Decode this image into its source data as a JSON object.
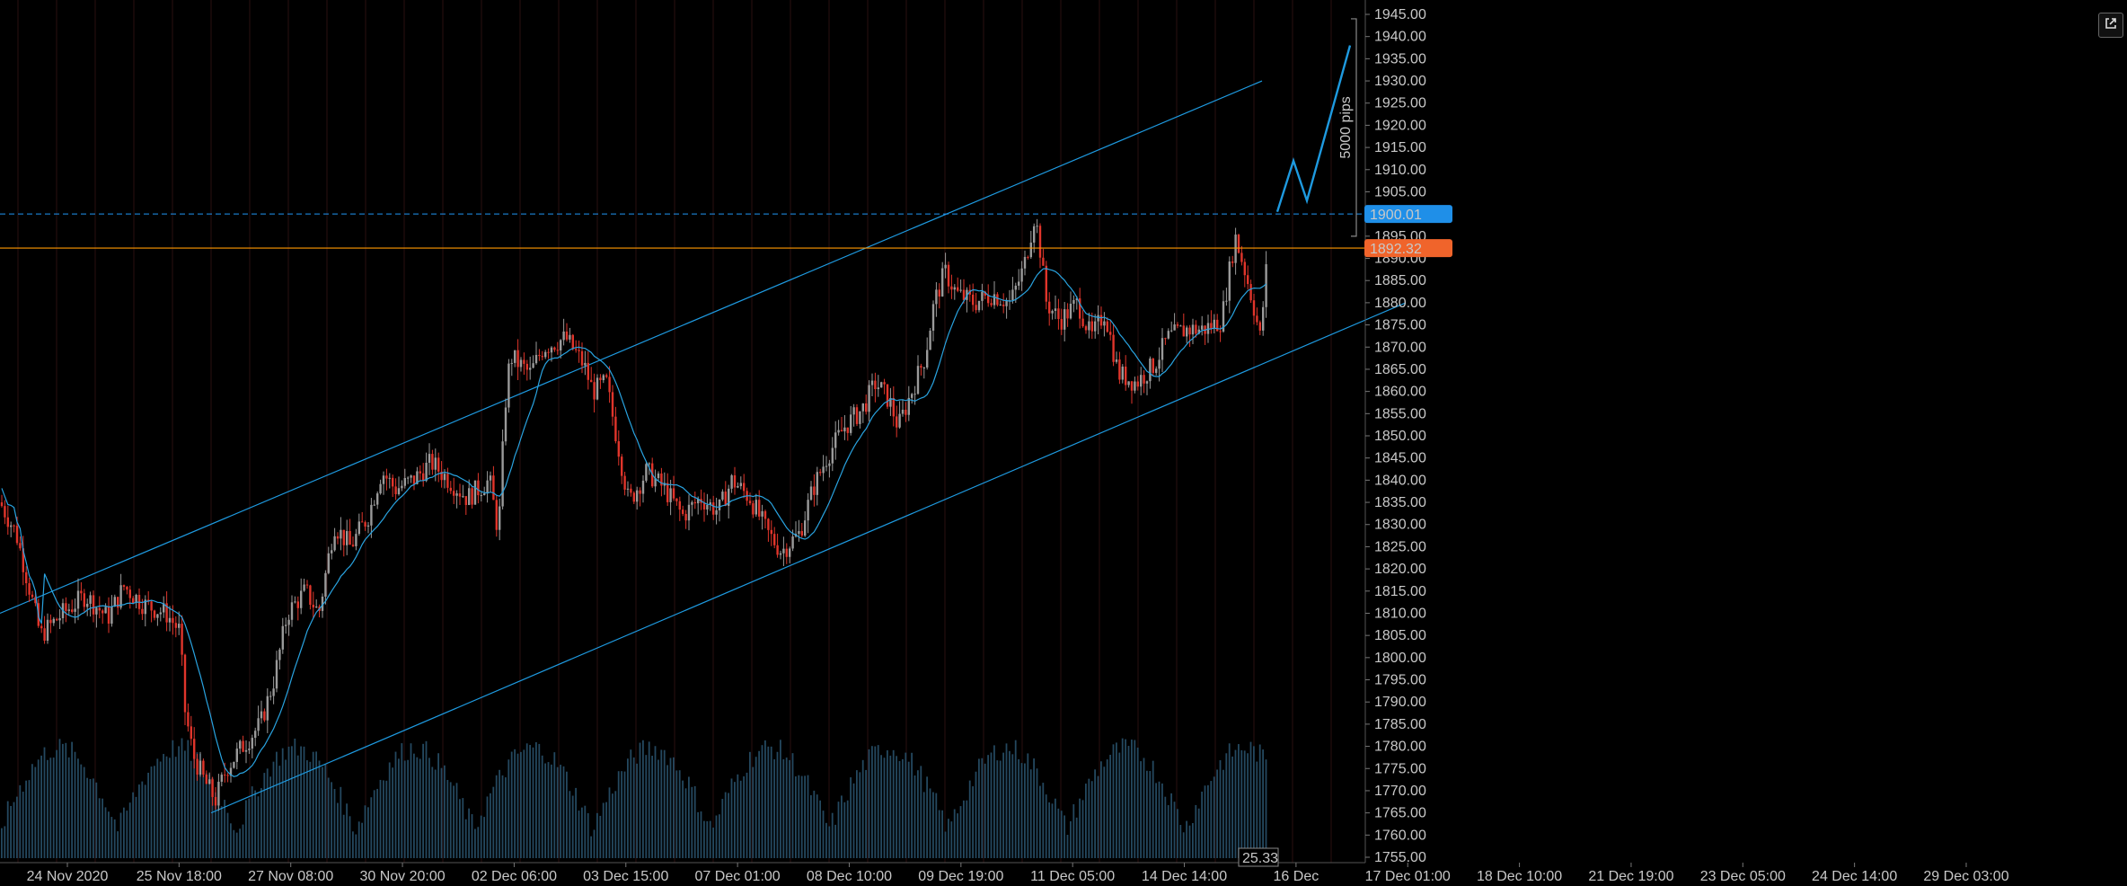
{
  "chart_data": {
    "type": "candlestick",
    "price_axis": {
      "min": 1755,
      "max": 1945,
      "ticks": [
        "1755.00",
        "1760.00",
        "1765.00",
        "1770.00",
        "1775.00",
        "1780.00",
        "1785.00",
        "1790.00",
        "1795.00",
        "1800.00",
        "1805.00",
        "1810.00",
        "1815.00",
        "1820.00",
        "1825.00",
        "1830.00",
        "1835.00",
        "1840.00",
        "1845.00",
        "1850.00",
        "1855.00",
        "1860.00",
        "1865.00",
        "1870.00",
        "1875.00",
        "1880.00",
        "1885.00",
        "1890.00",
        "1895.00",
        "1900.00",
        "1905.00",
        "1910.00",
        "1915.00",
        "1920.00",
        "1925.00",
        "1930.00",
        "1935.00",
        "1940.00",
        "1945.00"
      ]
    },
    "time_axis": {
      "labels": [
        "24 Nov 2020",
        "25 Nov 18:00",
        "27 Nov 08:00",
        "30 Nov 20:00",
        "02 Dec 06:00",
        "03 Dec 15:00",
        "07 Dec 01:00",
        "08 Dec 10:00",
        "09 Dec 19:00",
        "11 Dec 05:00",
        "14 Dec 14:00",
        "16 Dec",
        "17 Dec 01:00",
        "18 Dec 10:00",
        "21 Dec 19:00",
        "23 Dec 05:00",
        "24 Dec 14:00",
        "29 Dec 03:00"
      ]
    },
    "price_path": [
      [
        0,
        1835
      ],
      [
        18,
        1828
      ],
      [
        30,
        1818
      ],
      [
        45,
        1805
      ],
      [
        70,
        1810
      ],
      [
        95,
        1814
      ],
      [
        120,
        1809
      ],
      [
        138,
        1816
      ],
      [
        160,
        1812
      ],
      [
        185,
        1810
      ],
      [
        200,
        1806
      ],
      [
        206,
        1788
      ],
      [
        215,
        1778
      ],
      [
        228,
        1772
      ],
      [
        240,
        1768
      ],
      [
        252,
        1775
      ],
      [
        270,
        1780
      ],
      [
        290,
        1785
      ],
      [
        305,
        1795
      ],
      [
        320,
        1810
      ],
      [
        340,
        1815
      ],
      [
        355,
        1810
      ],
      [
        372,
        1830
      ],
      [
        390,
        1825
      ],
      [
        410,
        1832
      ],
      [
        425,
        1842
      ],
      [
        440,
        1838
      ],
      [
        460,
        1840
      ],
      [
        480,
        1844
      ],
      [
        500,
        1840
      ],
      [
        520,
        1836
      ],
      [
        545,
        1840
      ],
      [
        555,
        1828
      ],
      [
        562,
        1856
      ],
      [
        568,
        1868
      ],
      [
        590,
        1864
      ],
      [
        605,
        1870
      ],
      [
        630,
        1872
      ],
      [
        650,
        1866
      ],
      [
        660,
        1860
      ],
      [
        675,
        1862
      ],
      [
        688,
        1848
      ],
      [
        700,
        1835
      ],
      [
        720,
        1842
      ],
      [
        740,
        1838
      ],
      [
        760,
        1832
      ],
      [
        780,
        1836
      ],
      [
        800,
        1833
      ],
      [
        815,
        1840
      ],
      [
        835,
        1836
      ],
      [
        855,
        1828
      ],
      [
        870,
        1824
      ],
      [
        890,
        1828
      ],
      [
        905,
        1838
      ],
      [
        920,
        1845
      ],
      [
        940,
        1852
      ],
      [
        960,
        1856
      ],
      [
        975,
        1862
      ],
      [
        990,
        1858
      ],
      [
        1000,
        1852
      ],
      [
        1015,
        1860
      ],
      [
        1030,
        1868
      ],
      [
        1040,
        1880
      ],
      [
        1052,
        1887
      ],
      [
        1065,
        1882
      ],
      [
        1085,
        1880
      ],
      [
        1105,
        1882
      ],
      [
        1125,
        1880
      ],
      [
        1140,
        1888
      ],
      [
        1152,
        1900
      ],
      [
        1158,
        1892
      ],
      [
        1165,
        1880
      ],
      [
        1180,
        1876
      ],
      [
        1200,
        1880
      ],
      [
        1215,
        1872
      ],
      [
        1230,
        1878
      ],
      [
        1245,
        1864
      ],
      [
        1265,
        1862
      ],
      [
        1285,
        1866
      ],
      [
        1300,
        1872
      ],
      [
        1320,
        1874
      ],
      [
        1340,
        1874
      ],
      [
        1360,
        1876
      ],
      [
        1375,
        1895
      ],
      [
        1385,
        1888
      ],
      [
        1395,
        1880
      ],
      [
        1403,
        1872
      ],
      [
        1410,
        1888
      ]
    ],
    "moving_average": true,
    "volume_histogram": true,
    "annotations": {
      "horizontal_lines": [
        {
          "price": "1900.01",
          "style": "dashed",
          "color": "#2196f3"
        },
        {
          "price": "1892.32",
          "style": "solid",
          "color": "#ff9800"
        }
      ],
      "channel": {
        "upper": [
          [
            0,
            1810
          ],
          [
            1405,
            1930
          ]
        ],
        "lower": [
          [
            235,
            1765
          ],
          [
            1565,
            1880
          ]
        ]
      },
      "measure_label": "5000 pips",
      "volume_label": "25.33"
    }
  },
  "price_tags": {
    "level_1": "1900.01",
    "level_2": "1892.32",
    "level_1_color": "#1f8fe8",
    "level_2_color": "#f0642b"
  },
  "toolbar": {
    "popout_icon": "external-link-icon"
  }
}
